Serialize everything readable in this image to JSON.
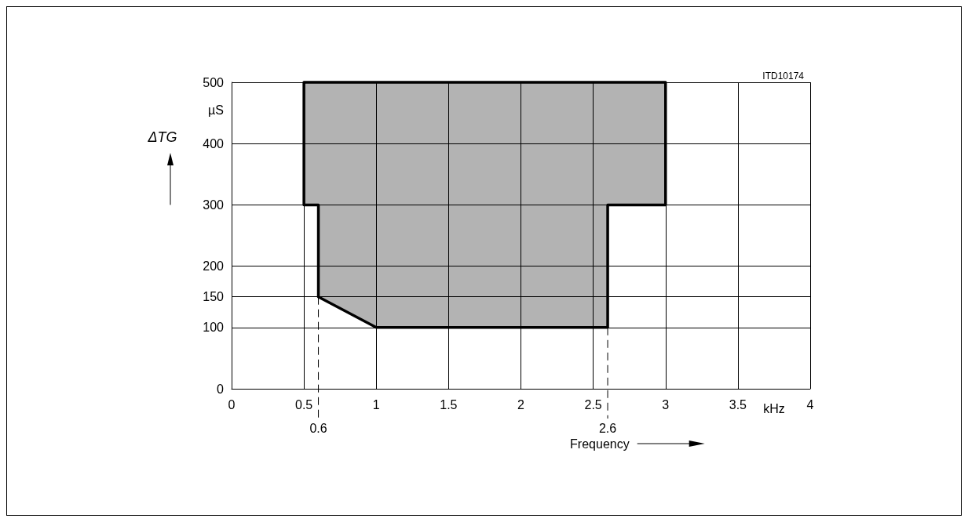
{
  "chart_data": {
    "type": "area",
    "xlabel": "Frequency",
    "ylabel": "ΔTG",
    "annotations": [
      "ITD10174",
      "µS",
      "kHz"
    ],
    "series": [
      {
        "color": "#b3b3b3",
        "x": [
          0.5,
          3,
          3,
          2.6,
          2.6,
          1,
          0.6,
          0.6,
          0.5
        ],
        "values": [
          500,
          500,
          300,
          300,
          100,
          100,
          150,
          300,
          300
        ]
      }
    ],
    "xlim": [
      0,
      4
    ],
    "xticks": [
      0,
      0.5,
      1,
      1.5,
      2,
      2.5,
      3,
      3.5,
      4
    ],
    "ylim": [
      0,
      500
    ],
    "yticks": [
      0,
      100,
      150,
      200,
      300,
      400,
      500
    ],
    "ref_lines": [
      {
        "axis": "x",
        "value": 0.6,
        "label": "0.6",
        "line_style": "dashed"
      },
      {
        "axis": "x",
        "value": 2.6,
        "label": "2.6",
        "line_style": "dashed"
      }
    ],
    "grid": true
  }
}
